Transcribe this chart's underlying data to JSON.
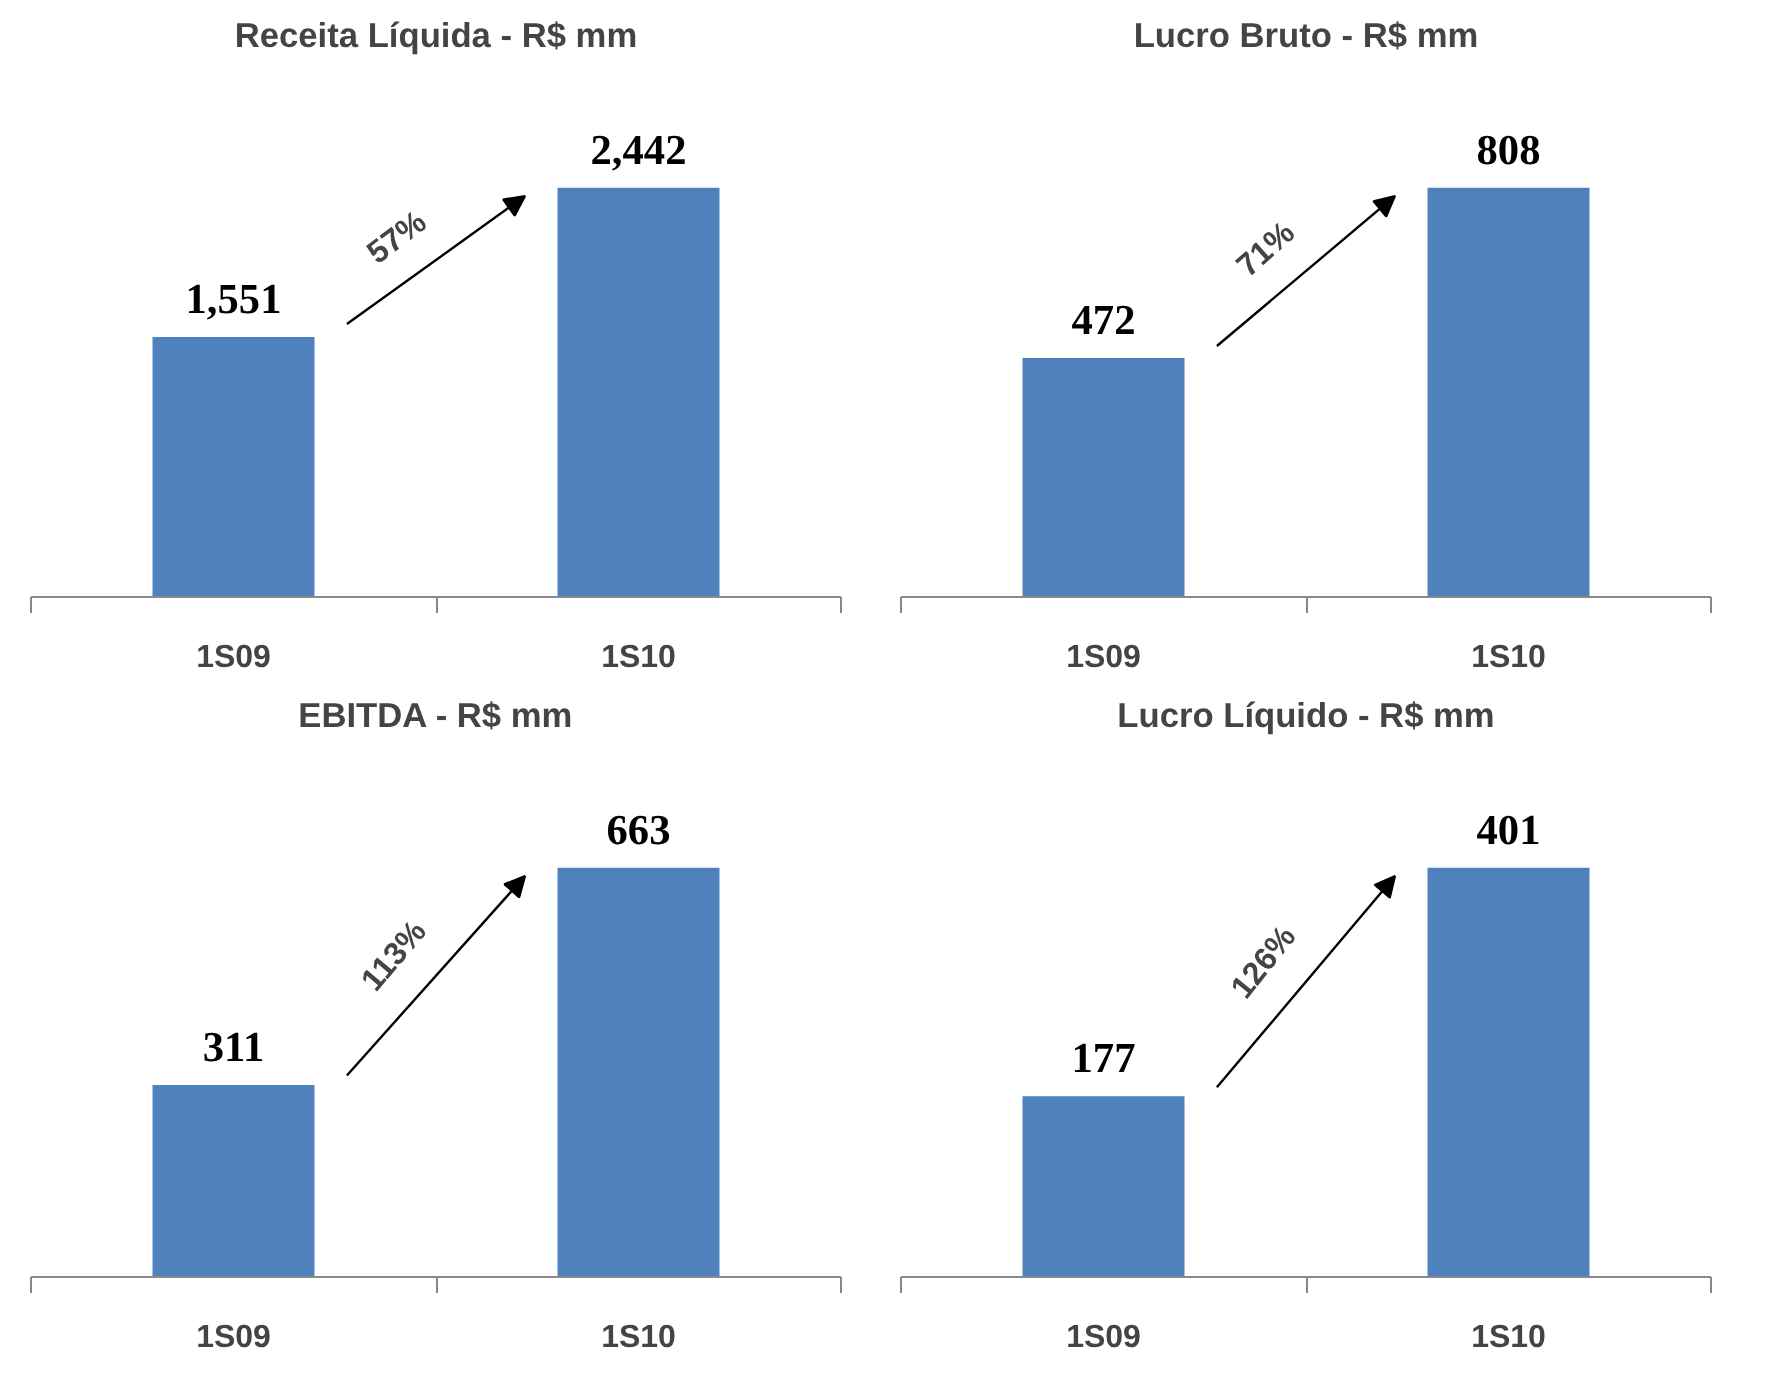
{
  "chart_data": [
    {
      "type": "bar",
      "title": "Receita Líquida - R$ mm",
      "categories": [
        "1S09",
        "1S10"
      ],
      "values": [
        1551,
        2442
      ],
      "color": "#4f81bd",
      "data_labels": true,
      "value_labels": [
        "1,551",
        "2,442"
      ],
      "annotations": [
        "57%"
      ]
    },
    {
      "type": "bar",
      "title": "Lucro Bruto - R$ mm",
      "categories": [
        "1S09",
        "1S10"
      ],
      "values": [
        472,
        808
      ],
      "color": "#4f81bd",
      "data_labels": true,
      "value_labels": [
        "472",
        "808"
      ],
      "annotations": [
        "71%"
      ]
    },
    {
      "type": "bar",
      "title": "EBITDA - R$ mm",
      "categories": [
        "1S09",
        "1S10"
      ],
      "values": [
        311,
        663
      ],
      "color": "#4f81bd",
      "data_labels": true,
      "value_labels": [
        "311",
        "663"
      ],
      "annotations": [
        "113%"
      ]
    },
    {
      "type": "bar",
      "title": "Lucro Líquido - R$ mm",
      "categories": [
        "1S09",
        "1S10"
      ],
      "values": [
        177,
        401
      ],
      "color": "#4f81bd",
      "data_labels": true,
      "value_labels": [
        "177",
        "401"
      ],
      "annotations": [
        "126%"
      ]
    }
  ]
}
